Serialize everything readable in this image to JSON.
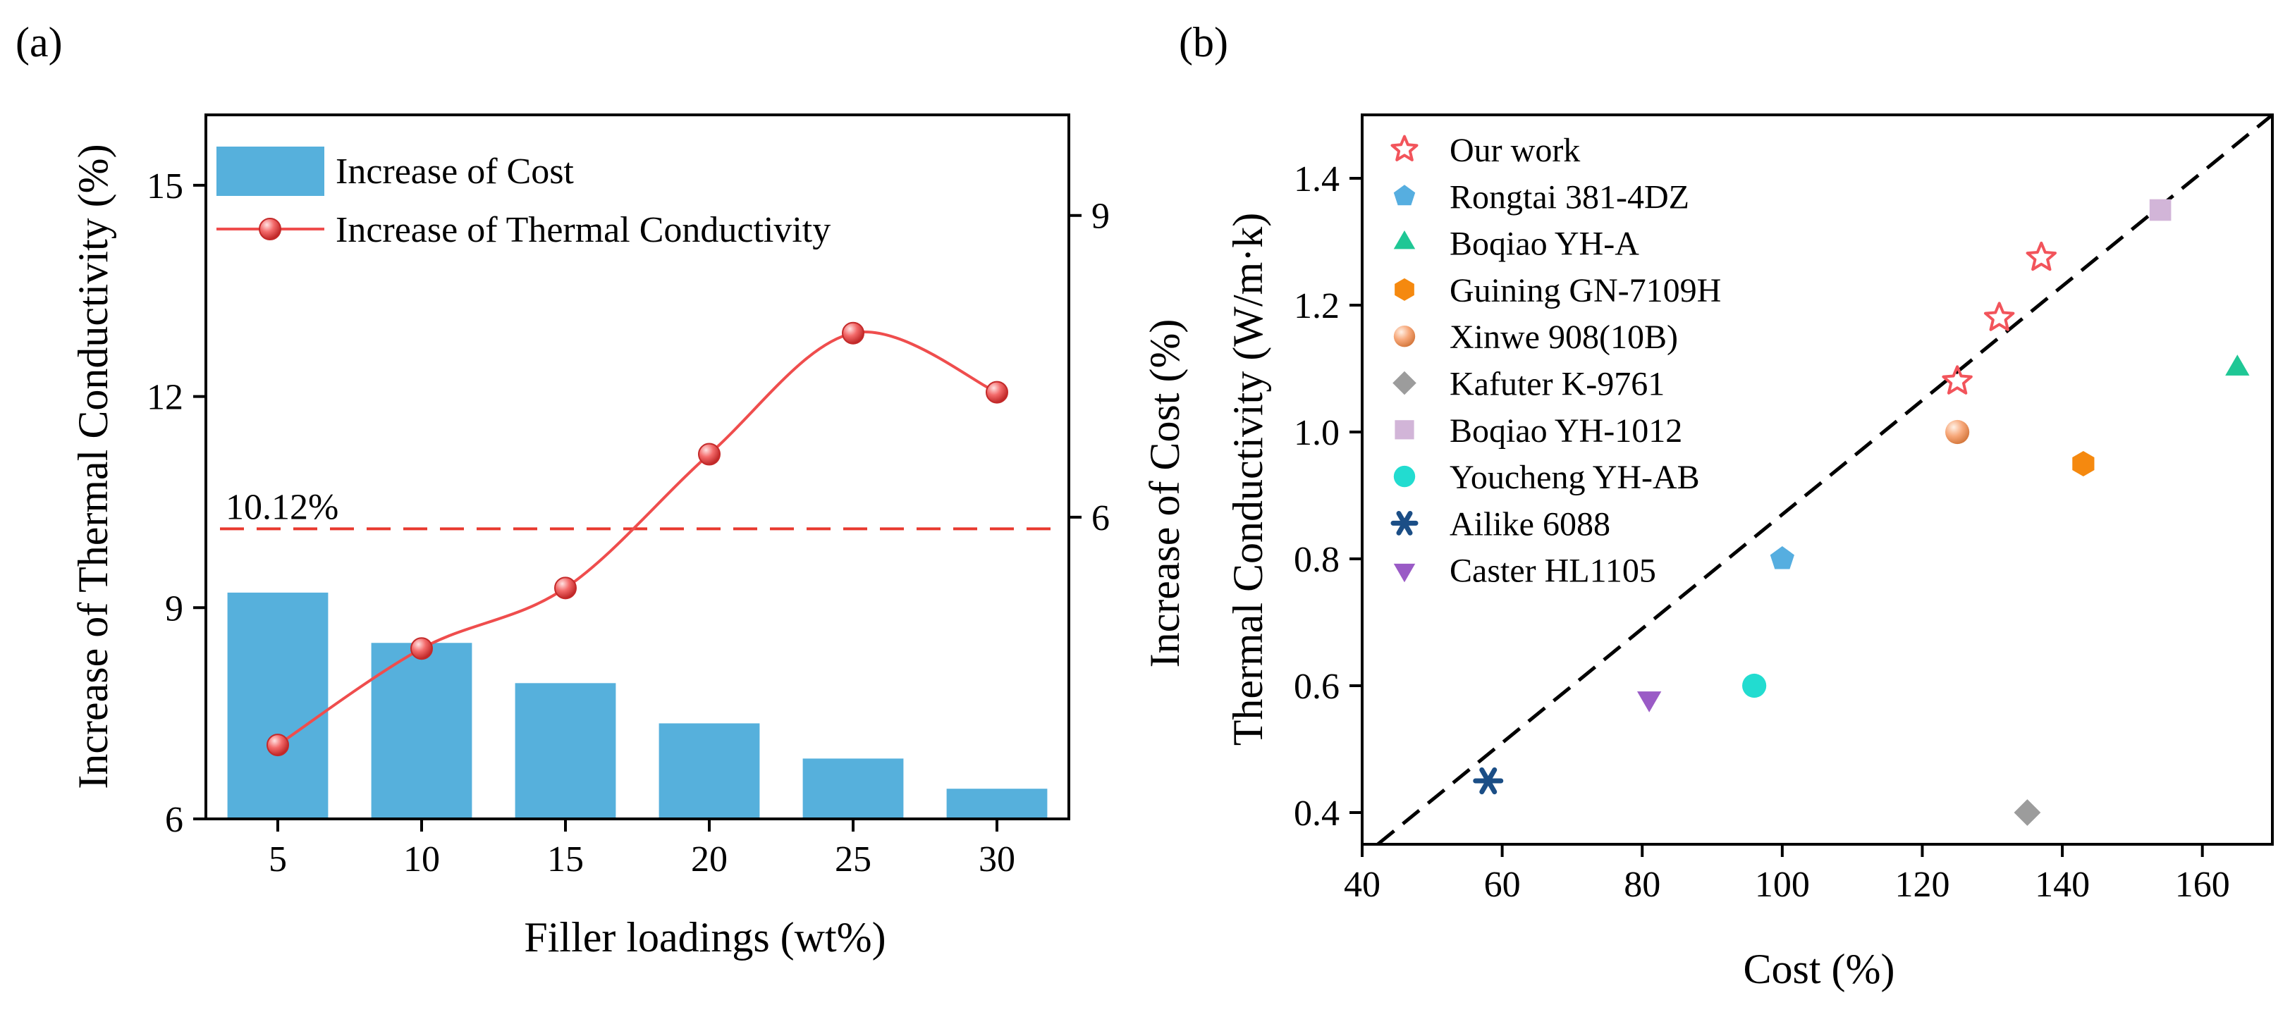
{
  "colors": {
    "bar": "#56B0DC",
    "line": "#EF4D4D",
    "reference": "#E8392E",
    "marker_fill": "#F26A6A",
    "axis": "#000000"
  },
  "chart_data": [
    {
      "panel_label": "(a)",
      "type": "bar+line",
      "categories": [
        "5",
        "10",
        "15",
        "20",
        "25",
        "30"
      ],
      "xlabel": "Filler loadings (wt%)",
      "ylabel_left": "Increase of Thermal Conductivity (%)",
      "ylabel_right": "Increase of Cost (%)",
      "ylim_left": [
        6,
        16
      ],
      "yticks_left": [
        6,
        9,
        12,
        15
      ],
      "ylim_right": [
        3,
        10
      ],
      "yticks_right": [
        6,
        9
      ],
      "series": [
        {
          "name": "Increase of Cost",
          "type": "bar",
          "axis": "right",
          "values": [
            5.25,
            4.75,
            4.35,
            3.95,
            3.6,
            3.3
          ]
        },
        {
          "name": "Increase of Thermal Conductivity",
          "type": "line",
          "axis": "left",
          "values": [
            7.05,
            8.42,
            9.28,
            11.18,
            12.9,
            12.06
          ]
        }
      ],
      "reference_line": {
        "value": 10.12,
        "label": "10.12%",
        "axis": "left"
      },
      "legend_position": "top-left"
    },
    {
      "panel_label": "(b)",
      "type": "scatter",
      "xlabel": "Cost (%)",
      "ylabel": "Thermal Conductivity (W/m·k)",
      "xlim": [
        40,
        170
      ],
      "xticks": [
        40,
        60,
        80,
        100,
        120,
        140,
        160
      ],
      "ylim": [
        0.35,
        1.5
      ],
      "yticks": [
        "0.4",
        "0.6",
        "0.8",
        "1.0",
        "1.2",
        "1.4"
      ],
      "diagonal": {
        "from": [
          40,
          0.33
        ],
        "to": [
          170,
          1.5
        ],
        "style": "dashed"
      },
      "legend_position": "top-left",
      "series": [
        {
          "name": "Our work",
          "marker": "star-open",
          "color": "#F2545B",
          "points": [
            [
              125,
              1.08
            ],
            [
              131,
              1.18
            ],
            [
              137,
              1.275
            ]
          ]
        },
        {
          "name": "Rongtai 381-4DZ",
          "marker": "pentagon",
          "color": "#56AEE0",
          "points": [
            [
              100,
              0.8
            ]
          ]
        },
        {
          "name": "Boqiao YH-A",
          "marker": "triangle-up",
          "color": "#1FC795",
          "points": [
            [
              165,
              1.1
            ]
          ]
        },
        {
          "name": "Guining GN-7109H",
          "marker": "hexagon",
          "color": "#F5890F",
          "points": [
            [
              143,
              0.95
            ]
          ]
        },
        {
          "name": "Xinwe 908(10B)",
          "marker": "sphere",
          "color": "#F7A87A",
          "points": [
            [
              125,
              1.0
            ]
          ]
        },
        {
          "name": "Kafuter K-9761",
          "marker": "diamond",
          "color": "#9C9C9C",
          "points": [
            [
              135,
              0.4
            ]
          ]
        },
        {
          "name": "Boqiao YH-1012",
          "marker": "square",
          "color": "#D2B5D8",
          "points": [
            [
              154,
              1.35
            ]
          ]
        },
        {
          "name": "Youcheng YH-AB",
          "marker": "circle",
          "color": "#22DCD0",
          "points": [
            [
              96,
              0.6
            ]
          ]
        },
        {
          "name": "Ailike 6088",
          "marker": "asterisk",
          "color": "#1B4E86",
          "points": [
            [
              58,
              0.45
            ]
          ]
        },
        {
          "name": "Caster HL1105",
          "marker": "triangle-down",
          "color": "#9A5BC6",
          "points": [
            [
              81,
              0.58
            ]
          ]
        }
      ]
    }
  ]
}
